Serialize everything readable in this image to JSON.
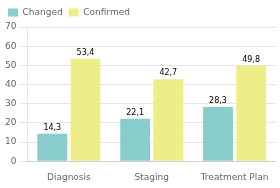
{
  "chart_data": {
    "type": "bar",
    "categories": [
      "Diagnosis",
      "Staging",
      "Treatment Plan"
    ],
    "series": [
      {
        "name": "Changed",
        "color": "#88CCCC",
        "values": [
          14.3,
          22.1,
          28.3
        ],
        "value_labels": [
          "14,3",
          "22,1",
          "28,3"
        ]
      },
      {
        "name": "Confirmed",
        "color": "#EEEE88",
        "values": [
          53.4,
          42.7,
          49.8
        ],
        "value_labels": [
          "53,4",
          "42,7",
          "49,8"
        ]
      }
    ],
    "ylim": [
      0,
      70
    ],
    "yticks": [
      0,
      10,
      20,
      30,
      40,
      50,
      60,
      70
    ],
    "grid": true,
    "legend": "upper left",
    "data_labels": true
  }
}
